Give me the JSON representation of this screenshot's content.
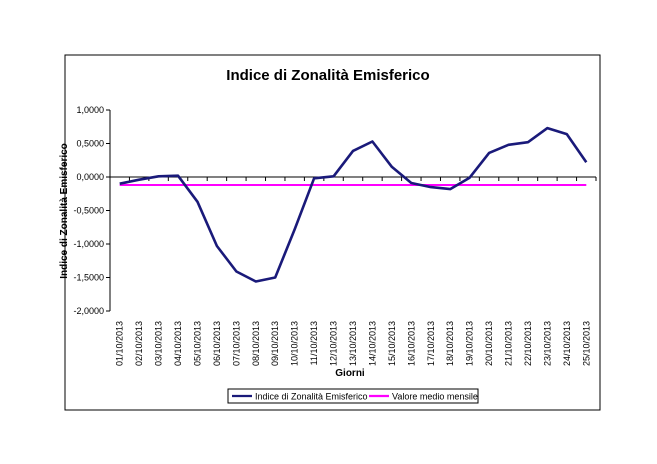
{
  "chart_data": {
    "type": "line",
    "title": "Indice di Zonalità Emisferico",
    "xlabel": "Giorni",
    "ylabel": "Indice di Zonalità Emisferico",
    "ylim": [
      -2.0,
      1.0
    ],
    "yticks": [
      1.0,
      0.5,
      0.0,
      -0.5,
      -1.0,
      -1.5,
      -2.0
    ],
    "ytick_labels": [
      "1,0000",
      "0,5000",
      "0,0000",
      "-0,5000",
      "-1,0000",
      "-1,5000",
      "-2,0000"
    ],
    "grid": false,
    "legend_position": "bottom",
    "categories": [
      "01/10/2013",
      "02/10/2013",
      "03/10/2013",
      "04/10/2013",
      "05/10/2013",
      "06/10/2013",
      "07/10/2013",
      "08/10/2013",
      "09/10/2013",
      "10/10/2013",
      "11/10/2013",
      "12/10/2013",
      "13/10/2013",
      "14/10/2013",
      "15/10/2013",
      "16/10/2013",
      "17/10/2013",
      "18/10/2013",
      "19/10/2013",
      "20/10/2013",
      "21/10/2013",
      "22/10/2013",
      "23/10/2013",
      "24/10/2013",
      "25/10/2013"
    ],
    "series": [
      {
        "name": "Indice di Zonalità Emisferico",
        "color": "#1a1a7a",
        "values": [
          -0.1,
          -0.04,
          0.01,
          0.02,
          -0.37,
          -1.03,
          -1.41,
          -1.56,
          -1.5,
          -0.78,
          -0.02,
          0.01,
          0.39,
          0.53,
          0.15,
          -0.09,
          -0.15,
          -0.18,
          -0.01,
          0.36,
          0.48,
          0.52,
          0.73,
          0.64,
          0.22
        ]
      },
      {
        "name": "Valore medio mensile",
        "color": "#ff00ff",
        "values": [
          -0.12,
          -0.12,
          -0.12,
          -0.12,
          -0.12,
          -0.12,
          -0.12,
          -0.12,
          -0.12,
          -0.12,
          -0.12,
          -0.12,
          -0.12,
          -0.12,
          -0.12,
          -0.12,
          -0.12,
          -0.12,
          -0.12,
          -0.12,
          -0.12,
          -0.12,
          -0.12,
          -0.12,
          -0.12
        ]
      }
    ]
  }
}
